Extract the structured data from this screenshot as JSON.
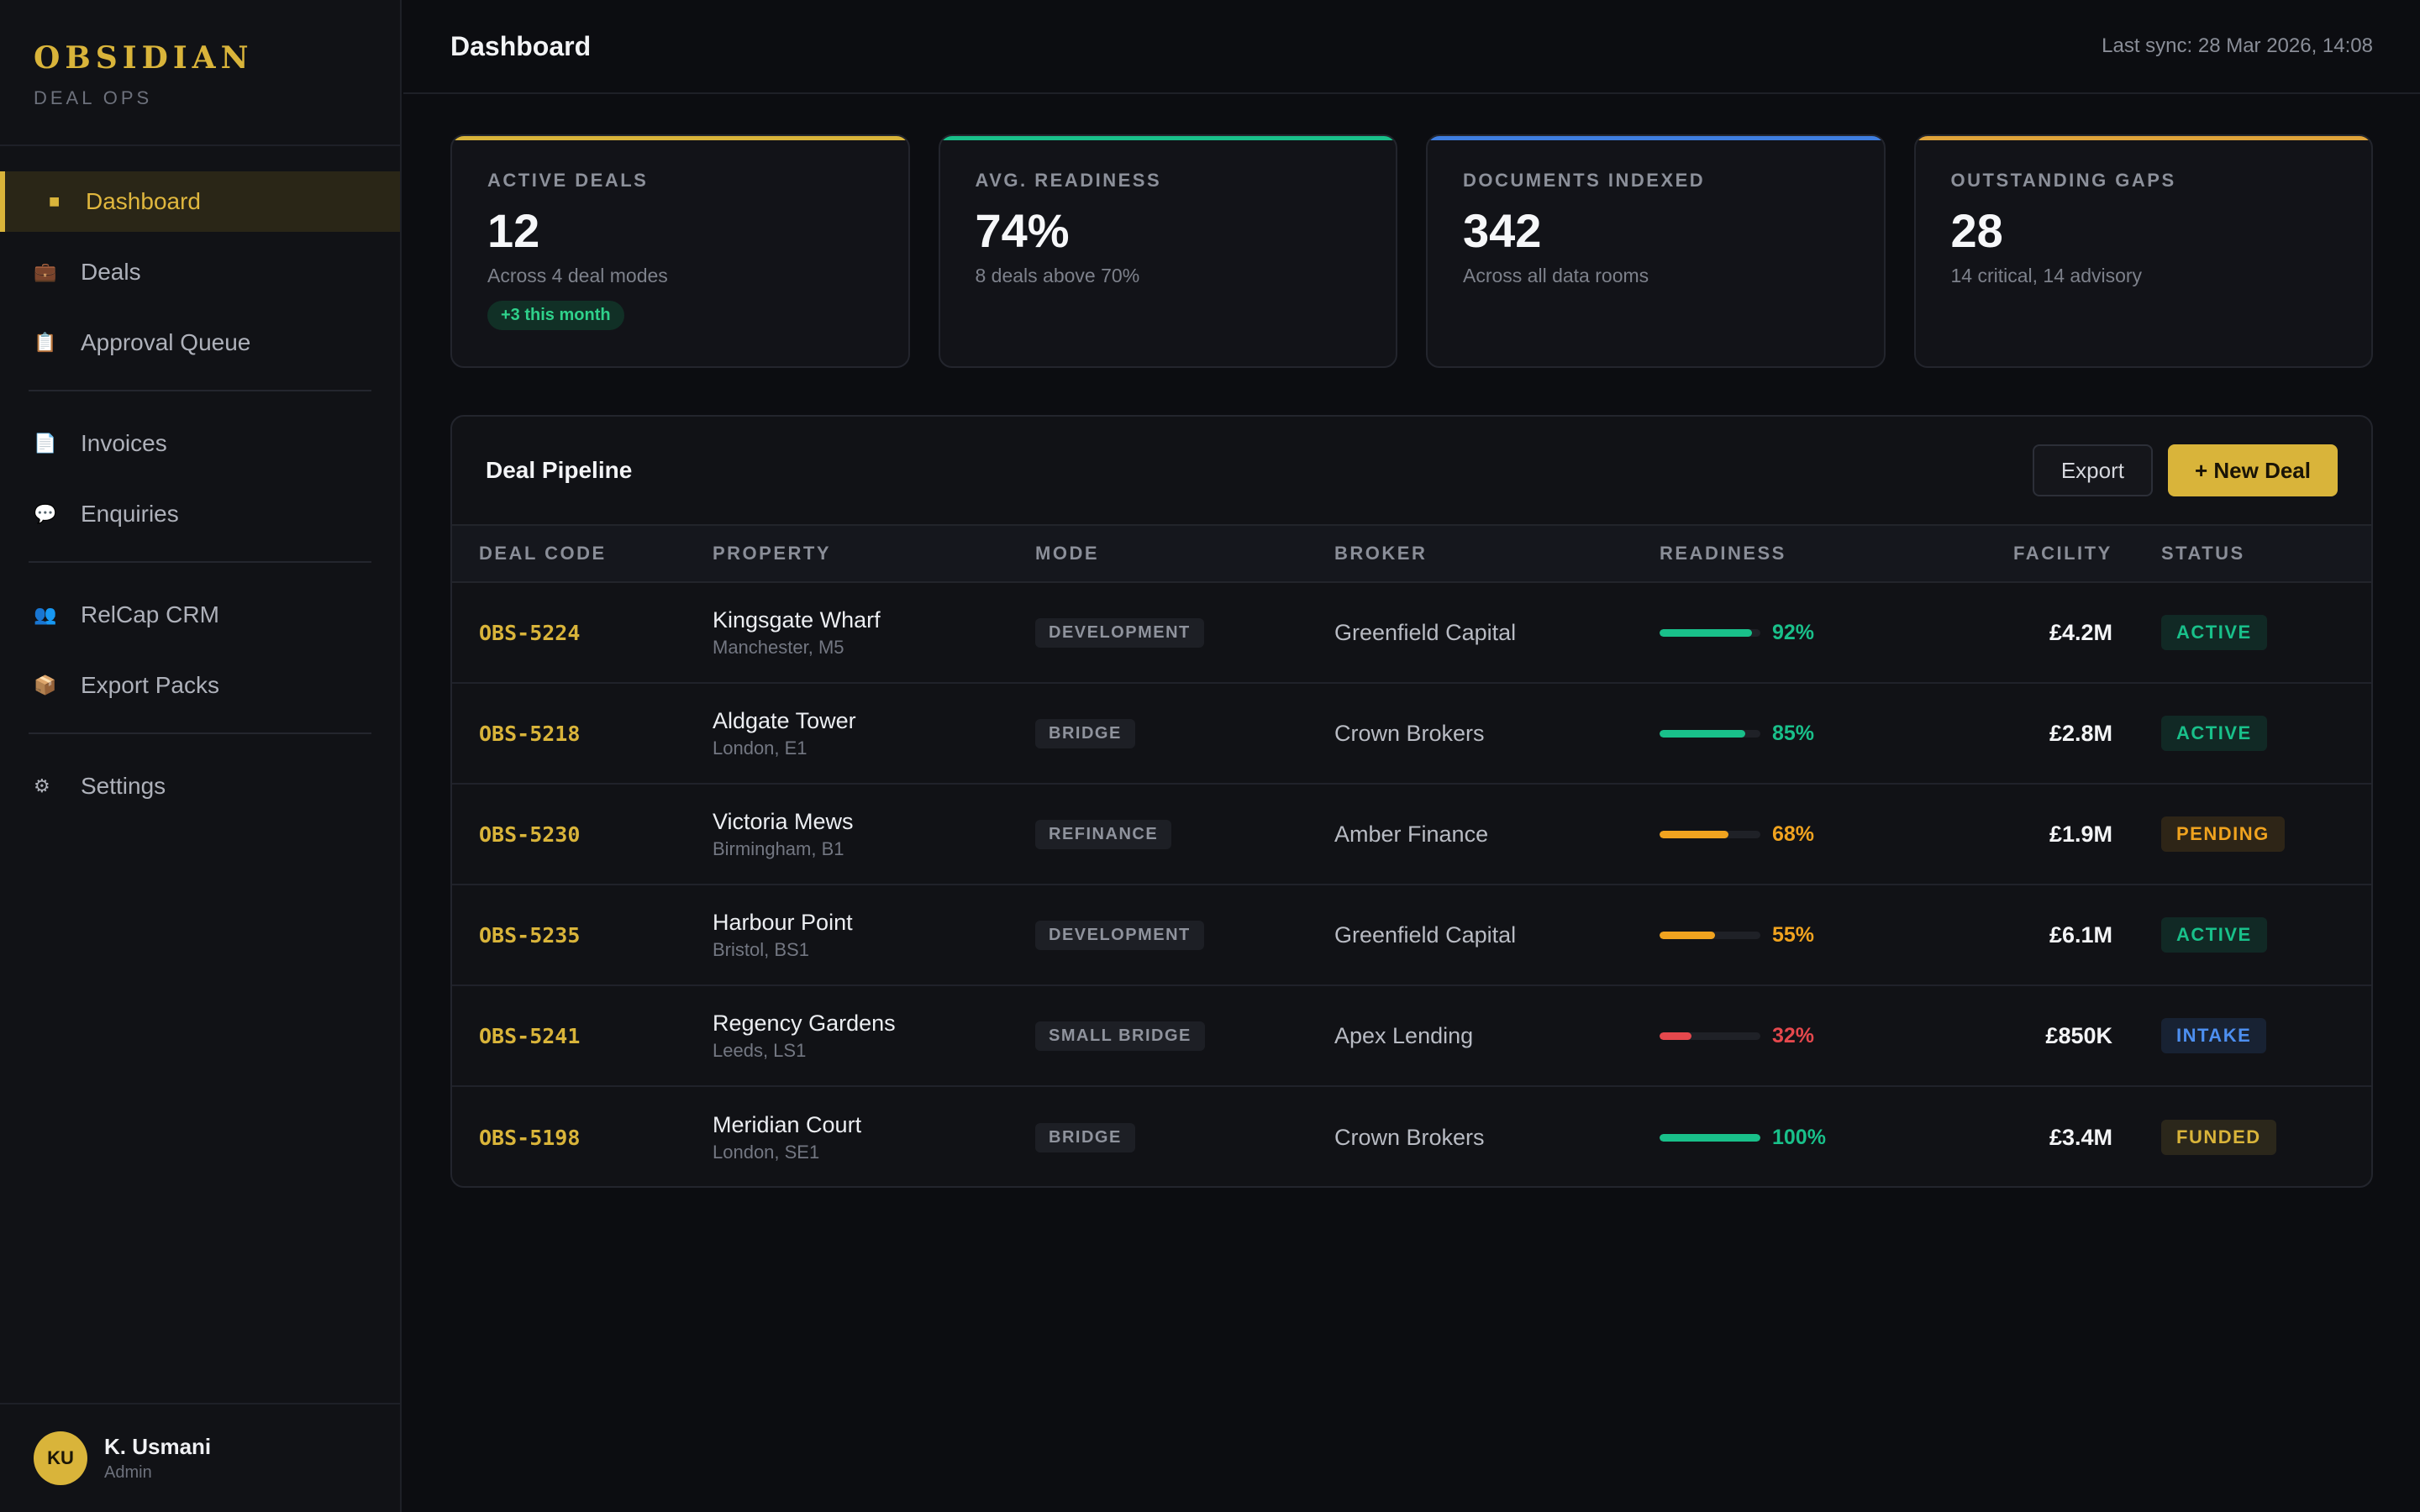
{
  "brand": {
    "name": "OBSIDIAN",
    "subtitle": "DEAL OPS"
  },
  "sidebar": {
    "items": [
      {
        "label": "Dashboard",
        "icon": "square-icon",
        "glyph": "■",
        "active": true
      },
      {
        "label": "Deals",
        "icon": "briefcase-icon",
        "glyph": "💼"
      },
      {
        "label": "Approval Queue",
        "icon": "clipboard-icon",
        "glyph": "📋"
      },
      {
        "label": "Invoices",
        "icon": "document-icon",
        "glyph": "📄"
      },
      {
        "label": "Enquiries",
        "icon": "speech-bubble-icon",
        "glyph": "💬"
      },
      {
        "label": "RelCap CRM",
        "icon": "users-icon",
        "glyph": "👥"
      },
      {
        "label": "Export Packs",
        "icon": "package-icon",
        "glyph": "📦"
      },
      {
        "label": "Settings",
        "icon": "gear-icon",
        "glyph": "⚙"
      }
    ]
  },
  "user": {
    "initials": "KU",
    "name": "K. Usmani",
    "role": "Admin"
  },
  "header": {
    "title": "Dashboard",
    "last_sync": "Last sync: 28 Mar 2026, 14:08"
  },
  "stats": [
    {
      "label": "ACTIVE DEALS",
      "value": "12",
      "sub": "Across 4 deal modes",
      "badge": "+3 this month",
      "accent": "#d9b43a"
    },
    {
      "label": "AVG. READINESS",
      "value": "74%",
      "sub": "8 deals above 70%",
      "accent": "#19c08a"
    },
    {
      "label": "DOCUMENTS INDEXED",
      "value": "342",
      "sub": "Across all data rooms",
      "accent": "#3f7ee0"
    },
    {
      "label": "OUTSTANDING GAPS",
      "value": "28",
      "sub": "14 critical, 14 advisory",
      "accent": "#e0a43a"
    }
  ],
  "pipeline": {
    "title": "Deal Pipeline",
    "export_label": "Export",
    "new_label": "+ New Deal",
    "columns": [
      "DEAL CODE",
      "PROPERTY",
      "MODE",
      "BROKER",
      "READINESS",
      "FACILITY",
      "STATUS"
    ],
    "rows": [
      {
        "code": "OBS-5224",
        "property": "Kingsgate Wharf",
        "location": "Manchester, M5",
        "mode": "DEVELOPMENT",
        "broker": "Greenfield Capital",
        "readiness": 92,
        "readiness_label": "92%",
        "facility": "£4.2M",
        "status": "ACTIVE"
      },
      {
        "code": "OBS-5218",
        "property": "Aldgate Tower",
        "location": "London, E1",
        "mode": "BRIDGE",
        "broker": "Crown Brokers",
        "readiness": 85,
        "readiness_label": "85%",
        "facility": "£2.8M",
        "status": "ACTIVE"
      },
      {
        "code": "OBS-5230",
        "property": "Victoria Mews",
        "location": "Birmingham, B1",
        "mode": "REFINANCE",
        "broker": "Amber Finance",
        "readiness": 68,
        "readiness_label": "68%",
        "facility": "£1.9M",
        "status": "PENDING"
      },
      {
        "code": "OBS-5235",
        "property": "Harbour Point",
        "location": "Bristol, BS1",
        "mode": "DEVELOPMENT",
        "broker": "Greenfield Capital",
        "readiness": 55,
        "readiness_label": "55%",
        "facility": "£6.1M",
        "status": "ACTIVE"
      },
      {
        "code": "OBS-5241",
        "property": "Regency Gardens",
        "location": "Leeds, LS1",
        "mode": "SMALL BRIDGE",
        "broker": "Apex Lending",
        "readiness": 32,
        "readiness_label": "32%",
        "facility": "£850K",
        "status": "INTAKE"
      },
      {
        "code": "OBS-5198",
        "property": "Meridian Court",
        "location": "London, SE1",
        "mode": "BRIDGE",
        "broker": "Crown Brokers",
        "readiness": 100,
        "readiness_label": "100%",
        "facility": "£3.4M",
        "status": "FUNDED"
      }
    ]
  },
  "colors": {
    "accent": "#d9b43a",
    "readiness_high": "#19c08a",
    "readiness_mid": "#f0a31f",
    "readiness_low": "#e5484d",
    "status_active": "#19c08a",
    "status_pending": "#f0a31f",
    "status_intake": "#4d8ff0",
    "status_funded": "#d9b43a"
  }
}
